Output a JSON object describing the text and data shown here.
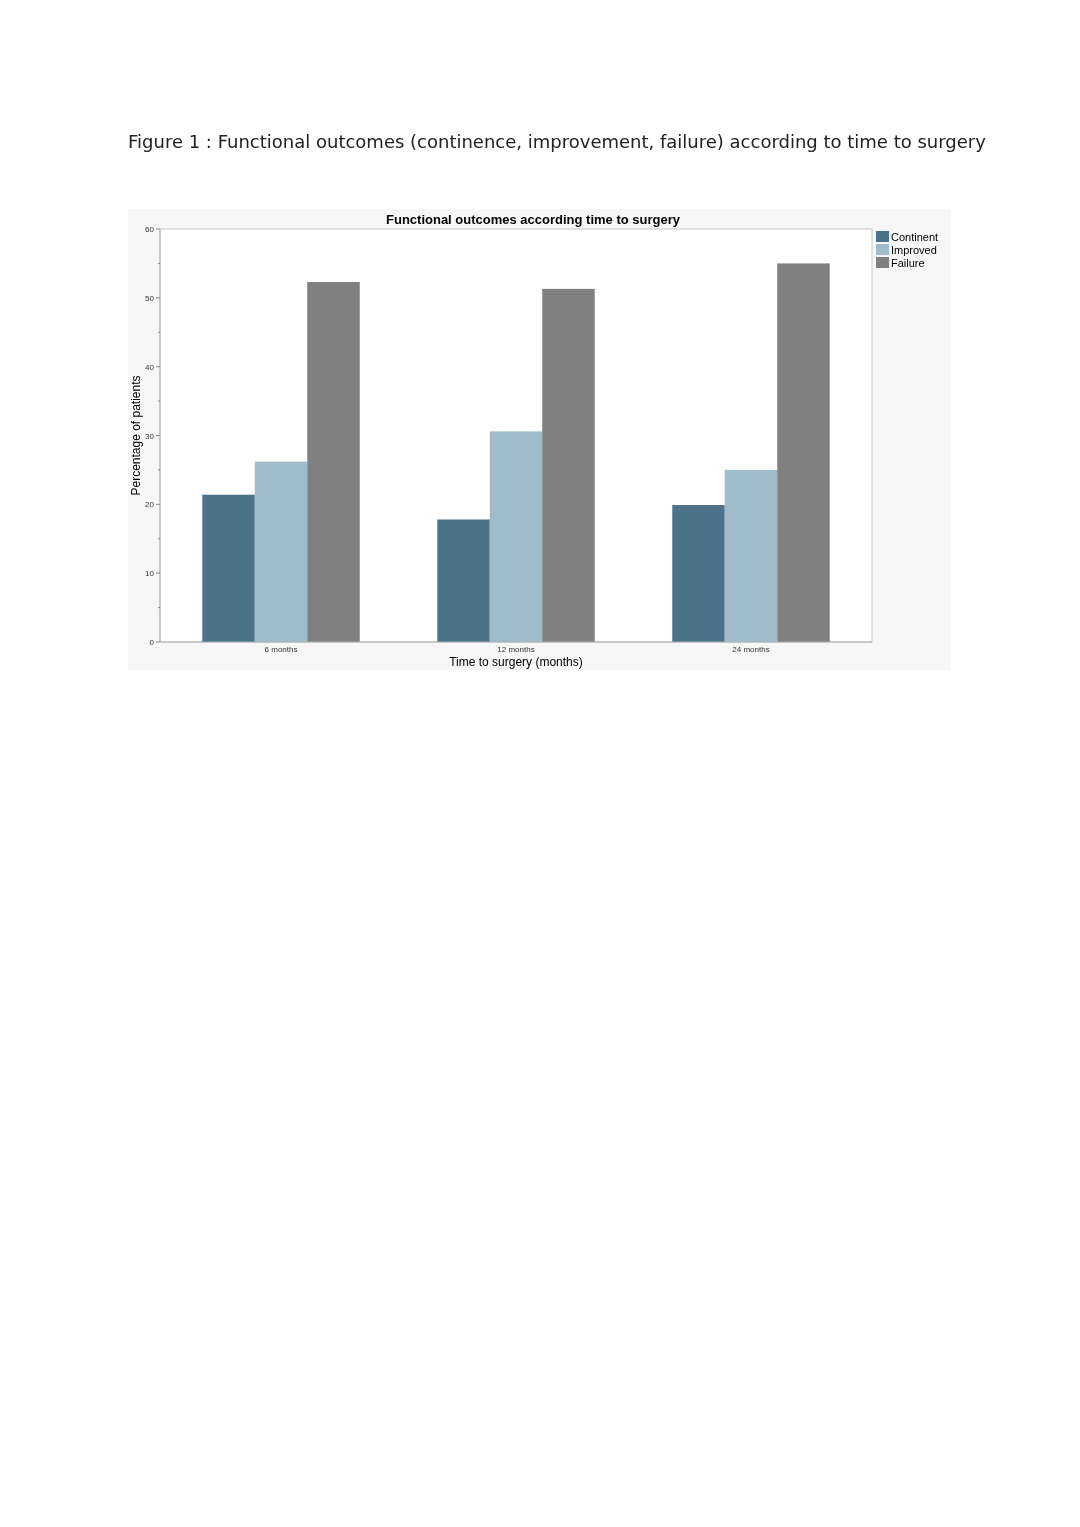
{
  "chart_data": {
    "type": "bar",
    "title": "Figure 1 : Functional outcomes (continence, improvement, failure) according to time to surgery",
    "subtitle": "Functional outcomes according time to surgery",
    "xlabel": "Time to surgery (months)",
    "ylabel": "Percentage of patients",
    "categories": [
      "6 months",
      "12 months",
      "24 months"
    ],
    "series": [
      {
        "name": "Continent",
        "color": "#4d738a",
        "values": [
          21.4,
          17.8,
          19.9
        ]
      },
      {
        "name": "Improved",
        "color": "#a0bbc9",
        "values": [
          26.2,
          30.6,
          25.0
        ]
      },
      {
        "name": "Failure",
        "color": "#808080",
        "values": [
          52.3,
          51.3,
          55.0
        ]
      }
    ],
    "ylim": [
      0,
      60
    ],
    "yticks": [
      0,
      {
        "value": 5,
        "label": null
      },
      10,
      {
        "value": 15,
        "label": null
      },
      20,
      {
        "value": 25,
        "label": null
      },
      30,
      {
        "value": 35,
        "label": null
      },
      40,
      {
        "value": 45,
        "label": null
      },
      50,
      {
        "value": 55,
        "label": null
      },
      60
    ],
    "grid": false,
    "legend": "top right"
  }
}
